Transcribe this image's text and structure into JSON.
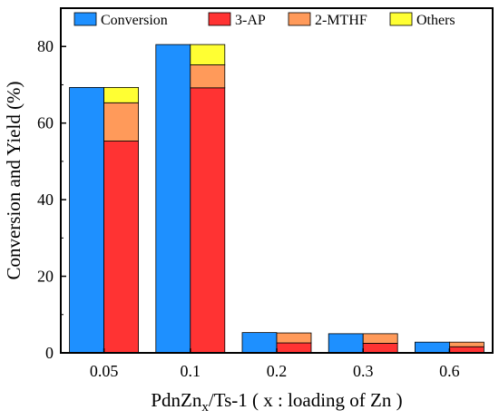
{
  "chart_data": {
    "type": "bar",
    "categories": [
      "0.05",
      "0.1",
      "0.2",
      "0.3",
      "0.6"
    ],
    "series": [
      {
        "name": "Conversion",
        "values": [
          69.3,
          80.5,
          5.3,
          5.0,
          2.8
        ],
        "color": "#1e90ff",
        "group": "conversion"
      },
      {
        "name": "3-AP",
        "values": [
          55.3,
          69.2,
          2.6,
          2.5,
          1.6
        ],
        "color": "#ff3333",
        "group": "yield"
      },
      {
        "name": "2-MTHF",
        "values": [
          10.0,
          6.0,
          2.6,
          2.5,
          1.2
        ],
        "color": "#ff9a5a",
        "group": "yield"
      },
      {
        "name": "Others",
        "values": [
          4.0,
          5.3,
          0,
          0,
          0
        ],
        "color": "#ffff33",
        "group": "yield"
      }
    ],
    "xlabel_main": "PdnZn",
    "xlabel_sub": "x",
    "xlabel_rest": "/Ts-1 ( x : loading of Zn )",
    "ylabel": "Conversion and Yield (%)",
    "yticks": [
      0,
      20,
      40,
      60,
      80
    ],
    "ylim": [
      0,
      90
    ],
    "legend_position": "top"
  }
}
